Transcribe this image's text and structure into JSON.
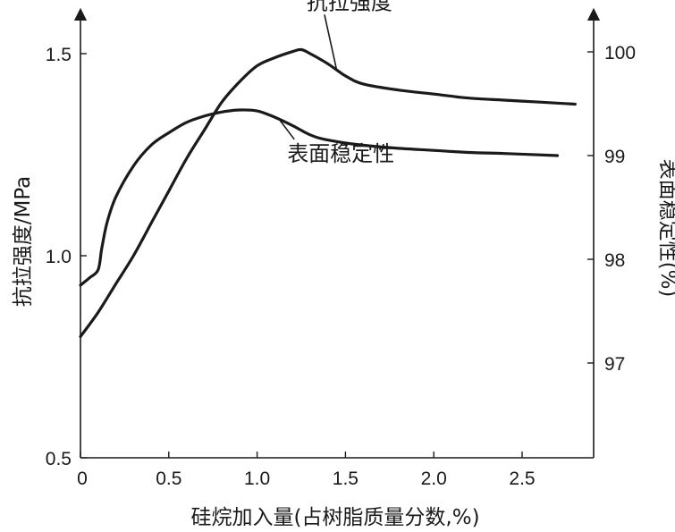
{
  "chart_data": {
    "type": "line",
    "xlabel": "硅烷加入量(占树脂质量分数,%)",
    "ylabel_left": "抗拉强度/MPa",
    "ylabel_right": "表面稳定性(%)",
    "xlim": [
      0,
      2.9
    ],
    "ylim_left": [
      0.5,
      1.7
    ],
    "ylim_right": [
      96.1,
      100.4
    ],
    "x_ticks": [
      "0",
      "0.5",
      "1.0",
      "1.5",
      "2.0",
      "2.5"
    ],
    "y_left_ticks": [
      "0.5",
      "1.0",
      "1.5"
    ],
    "y_right_ticks": [
      "97",
      "98",
      "99",
      "100"
    ],
    "grid": false,
    "colors": {
      "line": "#1a1a1a",
      "axis": "#1a1a1a"
    },
    "series": [
      {
        "name": "抗拉强度",
        "axis": "left",
        "x": [
          0,
          0.1,
          0.2,
          0.3,
          0.4,
          0.5,
          0.6,
          0.7,
          0.8,
          0.9,
          1.0,
          1.1,
          1.2,
          1.25,
          1.3,
          1.4,
          1.5,
          1.6,
          1.8,
          2.0,
          2.2,
          2.4,
          2.6,
          2.8
        ],
        "y": [
          0.8,
          0.86,
          0.93,
          1.0,
          1.08,
          1.16,
          1.24,
          1.31,
          1.38,
          1.43,
          1.47,
          1.49,
          1.505,
          1.51,
          1.5,
          1.475,
          1.445,
          1.425,
          1.41,
          1.4,
          1.39,
          1.385,
          1.38,
          1.375
        ]
      },
      {
        "name": "表面稳定性",
        "axis": "right",
        "x": [
          0,
          0.05,
          0.1,
          0.12,
          0.15,
          0.2,
          0.3,
          0.4,
          0.5,
          0.6,
          0.7,
          0.8,
          0.9,
          1.0,
          1.1,
          1.2,
          1.3,
          1.4,
          1.6,
          1.8,
          2.0,
          2.2,
          2.4,
          2.7
        ],
        "y": [
          97.75,
          97.82,
          97.9,
          98.1,
          98.35,
          98.6,
          98.9,
          99.1,
          99.22,
          99.32,
          99.38,
          99.42,
          99.44,
          99.43,
          99.37,
          99.29,
          99.2,
          99.15,
          99.1,
          99.07,
          99.05,
          99.03,
          99.02,
          99.0
        ]
      }
    ],
    "annotations": [
      {
        "series": "抗拉强度",
        "text": "抗拉强度",
        "label_x": 1.28,
        "label_y_left": 1.61,
        "point_x": 1.45,
        "point_y_left": 1.46
      },
      {
        "series": "表面稳定性",
        "text": "表面稳定性",
        "label_x": 1.17,
        "label_y_right": 98.95,
        "point_x": 1.12,
        "point_y_right": 99.36
      }
    ]
  }
}
